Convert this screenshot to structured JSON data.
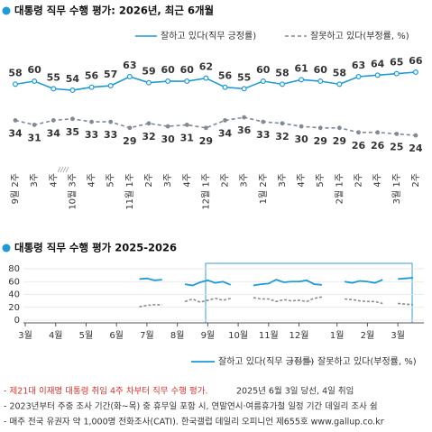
{
  "chart_data": [
    {
      "type": "line",
      "title": "대통령 직무 수행 평가: 2026년, 최근 6개월",
      "categories": [
        "9월 2주",
        "3주",
        "4주",
        "10월 3주",
        "4주",
        "5주",
        "11월 1주",
        "2주",
        "3주",
        "4주",
        "12월 1주",
        "2주",
        "3주",
        "1월 2주",
        "3주",
        "4주",
        "5주",
        "2월 1주",
        "2주",
        "4주",
        "3월 1주",
        "2주"
      ],
      "series": [
        {
          "name": "잘하고 있다(직무 긍정률)",
          "color": "#1e9ad6",
          "values": [
            58,
            60,
            55,
            54,
            56,
            57,
            63,
            59,
            60,
            60,
            62,
            56,
            55,
            60,
            58,
            61,
            60,
            58,
            63,
            64,
            65,
            66
          ]
        },
        {
          "name": "잘못하고 있다(부정률, %)",
          "color": "#7f8a96",
          "values": [
            34,
            31,
            34,
            35,
            33,
            33,
            29,
            32,
            30,
            31,
            29,
            34,
            36,
            33,
            32,
            30,
            29,
            29,
            26,
            26,
            25,
            24
          ]
        }
      ],
      "legend": "top-right"
    },
    {
      "type": "line",
      "title": "대통령 직무 수행 평가 2025-2026",
      "categories": [
        "3월",
        null,
        null,
        null,
        "4월",
        null,
        null,
        null,
        "5월",
        null,
        null,
        null,
        "6월",
        null,
        null,
        null,
        "7월",
        null,
        null,
        null,
        "8월",
        null,
        null,
        null,
        "9월",
        null,
        null,
        null,
        "10월",
        null,
        null,
        null,
        "11월",
        null,
        null,
        null,
        "12월",
        null,
        null,
        null,
        null,
        "1월",
        null,
        null,
        null,
        "2월",
        null,
        null,
        null,
        "3월",
        null,
        null
      ],
      "series": [
        {
          "name": "잘하고 있다(직무 긍정률)",
          "color": "#1e9ad6",
          "values": [
            null,
            null,
            null,
            null,
            null,
            null,
            null,
            null,
            null,
            null,
            null,
            null,
            null,
            null,
            null,
            64,
            65,
            62,
            63,
            null,
            null,
            56,
            54,
            59,
            62,
            58,
            60,
            55,
            null,
            null,
            54,
            56,
            57,
            63,
            59,
            60,
            60,
            62,
            56,
            55,
            null,
            null,
            60,
            58,
            61,
            60,
            58,
            63,
            null,
            64,
            65,
            66
          ]
        },
        {
          "name": "잘못하고 있다(부정률, %)",
          "color": "#8c8c8c",
          "values": [
            null,
            null,
            null,
            null,
            null,
            null,
            null,
            null,
            null,
            null,
            null,
            null,
            null,
            null,
            null,
            21,
            23,
            24,
            24,
            null,
            null,
            29,
            33,
            28,
            31,
            34,
            31,
            34,
            null,
            null,
            35,
            33,
            33,
            29,
            32,
            30,
            31,
            29,
            34,
            36,
            null,
            null,
            33,
            32,
            30,
            29,
            29,
            26,
            null,
            26,
            25,
            24
          ]
        }
      ],
      "ylim": [
        0,
        80
      ],
      "yticks": [
        0,
        20,
        40,
        60,
        80
      ],
      "grid": true,
      "legend": "bottom-right"
    }
  ],
  "footnotes": [
    "- 제21대 이재명 대통령 취임 4주 차부터 직무 수행 평가.",
    "2025년 6월 3일 당선, 4일 취임",
    "- 2023년부터 주중 조사 기간(화~목) 중 휴무일 포함 시, 연말연시·여름휴가철 일정 기간 데일리 조사 쉼",
    "- 매주 전국 유권자 약 1,000명 전화조사(CATI). 한국갤럽 데일리 오피니언 제655호 www.gallup.co.kr"
  ]
}
